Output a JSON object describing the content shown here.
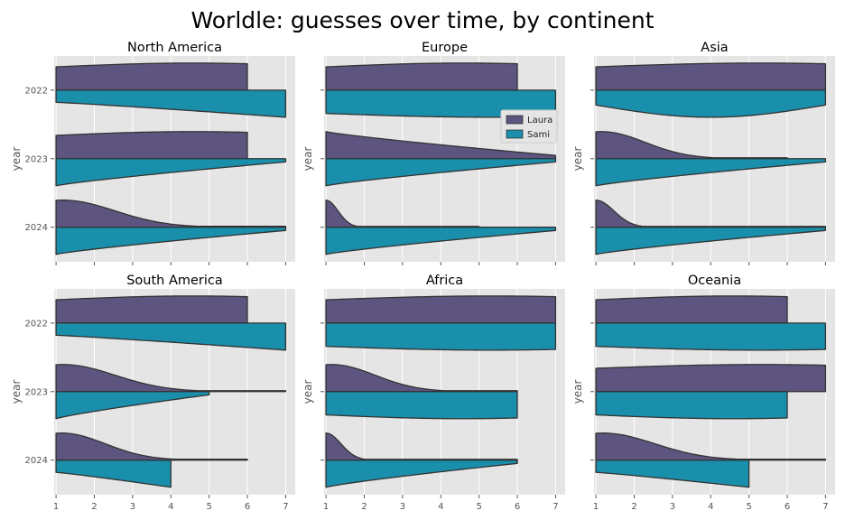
{
  "chart_data": {
    "type": "violin",
    "title": "Worldle: guesses over time, by continent",
    "ylabel": "year",
    "xlabel": "",
    "xlim": [
      0.95,
      7.25
    ],
    "x_ticks": [
      1,
      2,
      3,
      4,
      5,
      6,
      7
    ],
    "y_categories": [
      "2022",
      "2023",
      "2024"
    ],
    "split": true,
    "grid": true,
    "legend": {
      "placement": "inside Europe panel, upper right",
      "entries": [
        "Laura",
        "Sami"
      ]
    },
    "colors": {
      "Laura": "#5e5480",
      "Sami": "#198fab",
      "panel_bg": "#e5e5e5",
      "grid": "#ffffff",
      "outline": "#333333"
    },
    "panels": [
      {
        "name": "North America",
        "violins": {
          "2022": {
            "Laura": {
              "max": 6,
              "shape": "flat"
            },
            "Sami": {
              "max": 7,
              "shape": "rising"
            }
          },
          "2023": {
            "Laura": {
              "max": 6,
              "shape": "flat"
            },
            "Sami": {
              "max": 7,
              "shape": "tapering"
            }
          },
          "2024": {
            "Laura": {
              "max": 7,
              "shape": "peaked"
            },
            "Sami": {
              "max": 7,
              "shape": "tapering"
            }
          }
        }
      },
      {
        "name": "Europe",
        "violins": {
          "2022": {
            "Laura": {
              "max": 6,
              "shape": "flat"
            },
            "Sami": {
              "max": 7,
              "shape": "flat"
            }
          },
          "2023": {
            "Laura": {
              "max": 7,
              "shape": "tapering"
            },
            "Sami": {
              "max": 7,
              "shape": "tapering"
            }
          },
          "2024": {
            "Laura": {
              "max": 5,
              "shape": "sharp"
            },
            "Sami": {
              "max": 7,
              "shape": "tapering"
            }
          }
        }
      },
      {
        "name": "Asia",
        "violins": {
          "2022": {
            "Laura": {
              "max": 7,
              "shape": "flat"
            },
            "Sami": {
              "max": 7,
              "shape": "bulge"
            }
          },
          "2023": {
            "Laura": {
              "max": 6,
              "shape": "peaked"
            },
            "Sami": {
              "max": 7,
              "shape": "tapering"
            }
          },
          "2024": {
            "Laura": {
              "max": 7,
              "shape": "sharp"
            },
            "Sami": {
              "max": 7,
              "shape": "tapering"
            }
          }
        }
      },
      {
        "name": "South America",
        "violins": {
          "2022": {
            "Laura": {
              "max": 6,
              "shape": "flat"
            },
            "Sami": {
              "max": 7,
              "shape": "rising"
            }
          },
          "2023": {
            "Laura": {
              "max": 7,
              "shape": "peaked"
            },
            "Sami": {
              "max": 5,
              "shape": "tapering"
            }
          },
          "2024": {
            "Laura": {
              "max": 6,
              "shape": "peaked"
            },
            "Sami": {
              "max": 4,
              "shape": "rising"
            }
          }
        }
      },
      {
        "name": "Africa",
        "violins": {
          "2022": {
            "Laura": {
              "max": 7,
              "shape": "flat"
            },
            "Sami": {
              "max": 7,
              "shape": "flat"
            }
          },
          "2023": {
            "Laura": {
              "max": 6,
              "shape": "peaked"
            },
            "Sami": {
              "max": 6,
              "shape": "flat"
            }
          },
          "2024": {
            "Laura": {
              "max": 6,
              "shape": "sharp"
            },
            "Sami": {
              "max": 6,
              "shape": "tapering"
            }
          }
        }
      },
      {
        "name": "Oceania",
        "violins": {
          "2022": {
            "Laura": {
              "max": 6,
              "shape": "flat"
            },
            "Sami": {
              "max": 7,
              "shape": "flat"
            }
          },
          "2023": {
            "Laura": {
              "max": 7,
              "shape": "flat"
            },
            "Sami": {
              "max": 6,
              "shape": "flat"
            }
          },
          "2024": {
            "Laura": {
              "max": 7,
              "shape": "peaked"
            },
            "Sami": {
              "max": 5,
              "shape": "rising"
            }
          }
        }
      }
    ]
  }
}
